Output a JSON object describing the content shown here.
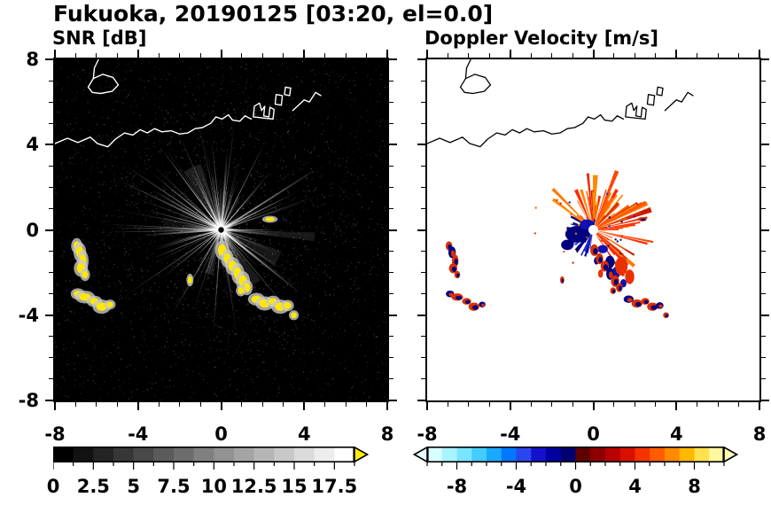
{
  "title": "Fukuoka, 20190125 [03:20, el=0.0]",
  "coastline": {
    "paths": [
      {
        "closed": false,
        "pts": [
          [
            -8,
            4.05
          ],
          [
            -7.4,
            4.3
          ],
          [
            -6.9,
            4.1
          ],
          [
            -6.3,
            4.35
          ],
          [
            -5.95,
            4.05
          ],
          [
            -5.45,
            3.9
          ],
          [
            -5.1,
            4.25
          ],
          [
            -4.65,
            4.55
          ],
          [
            -4.25,
            4.45
          ],
          [
            -3.9,
            4.7
          ],
          [
            -3.55,
            4.55
          ],
          [
            -3.2,
            4.75
          ],
          [
            -2.85,
            4.6
          ],
          [
            -2.4,
            4.65
          ],
          [
            -2.0,
            4.5
          ],
          [
            -1.6,
            4.55
          ],
          [
            -1.25,
            4.75
          ],
          [
            -0.9,
            4.8
          ],
          [
            -0.5,
            5.0
          ],
          [
            -0.25,
            5.3
          ],
          [
            0.05,
            5.2
          ],
          [
            0.35,
            5.4
          ],
          [
            0.55,
            5.15
          ],
          [
            0.9,
            5.1
          ],
          [
            1.15,
            5.35
          ],
          [
            1.45,
            5.2
          ]
        ]
      },
      {
        "closed": true,
        "pts": [
          [
            1.55,
            5.3
          ],
          [
            1.6,
            5.8
          ],
          [
            1.85,
            5.95
          ],
          [
            1.95,
            5.6
          ],
          [
            2.1,
            5.8
          ],
          [
            2.05,
            5.35
          ],
          [
            2.3,
            5.3
          ],
          [
            2.35,
            5.75
          ],
          [
            2.55,
            5.65
          ],
          [
            2.5,
            5.2
          ]
        ]
      },
      {
        "closed": true,
        "pts": [
          [
            2.6,
            5.9
          ],
          [
            2.65,
            6.35
          ],
          [
            2.95,
            6.3
          ],
          [
            2.9,
            5.85
          ]
        ]
      },
      {
        "closed": true,
        "pts": [
          [
            3.05,
            6.35
          ],
          [
            3.1,
            6.7
          ],
          [
            3.35,
            6.65
          ],
          [
            3.3,
            6.3
          ]
        ]
      },
      {
        "closed": false,
        "pts": [
          [
            3.45,
            5.6
          ],
          [
            4.0,
            6.1
          ],
          [
            4.25,
            6.0
          ],
          [
            4.55,
            6.45
          ],
          [
            4.8,
            6.3
          ]
        ]
      },
      {
        "closed": true,
        "pts": [
          [
            -6.4,
            6.7
          ],
          [
            -6.15,
            7.1
          ],
          [
            -5.7,
            7.3
          ],
          [
            -5.2,
            7.15
          ],
          [
            -4.95,
            6.8
          ],
          [
            -5.25,
            6.5
          ],
          [
            -5.8,
            6.4
          ],
          [
            -6.2,
            6.45
          ]
        ]
      },
      {
        "closed": false,
        "pts": [
          [
            -5.9,
            8.0
          ],
          [
            -6.1,
            7.6
          ],
          [
            -6.15,
            7.1
          ]
        ]
      }
    ]
  },
  "echoes": [
    [
      -6.95,
      -0.75,
      0.16,
      0.22
    ],
    [
      -6.8,
      -1.05,
      0.18,
      0.28
    ],
    [
      -6.65,
      -1.45,
      0.16,
      0.3
    ],
    [
      -6.75,
      -1.8,
      0.2,
      0.24
    ],
    [
      -6.55,
      -2.1,
      0.14,
      0.18
    ],
    [
      -6.9,
      -3.0,
      0.2,
      0.16
    ],
    [
      -6.55,
      -3.15,
      0.28,
      0.18
    ],
    [
      -6.1,
      -3.35,
      0.22,
      0.16
    ],
    [
      -5.75,
      -3.6,
      0.26,
      0.2
    ],
    [
      -5.35,
      -3.5,
      0.16,
      0.14
    ],
    [
      0.05,
      -0.95,
      0.2,
      0.28
    ],
    [
      0.3,
      -1.35,
      0.18,
      0.26
    ],
    [
      0.55,
      -1.7,
      0.2,
      0.26
    ],
    [
      0.8,
      -2.05,
      0.18,
      0.3
    ],
    [
      1.05,
      -2.4,
      0.2,
      0.28
    ],
    [
      1.25,
      -2.7,
      0.16,
      0.22
    ],
    [
      0.95,
      -2.85,
      0.14,
      0.16
    ],
    [
      1.7,
      -3.25,
      0.24,
      0.18
    ],
    [
      2.1,
      -3.45,
      0.26,
      0.2
    ],
    [
      2.5,
      -3.35,
      0.2,
      0.16
    ],
    [
      2.85,
      -3.6,
      0.26,
      0.2
    ],
    [
      3.2,
      -3.55,
      0.18,
      0.16
    ],
    [
      3.5,
      -4.0,
      0.14,
      0.14
    ],
    [
      -1.5,
      -2.35,
      0.1,
      0.18
    ],
    [
      2.35,
      0.5,
      0.22,
      0.1
    ]
  ],
  "chart_data": [
    {
      "type": "heatmap",
      "id": "snr",
      "subtitle": "SNR [dB]",
      "quantity": "radar signal-to-noise ratio PPI",
      "units": "dB",
      "axis": {
        "min": -8,
        "max": 8,
        "ticks": [
          -8,
          -4,
          0,
          4,
          8
        ],
        "tick_labels": [
          "-8",
          "-4",
          "0",
          "4",
          "8"
        ],
        "minor_step": 1,
        "y_labels": true
      },
      "background": "#000000",
      "render": {
        "style": "snr",
        "speckle_count": 2400,
        "ray_count": 150,
        "ray_max_radius": 5.8,
        "echo_color": "#ffe800",
        "echo_halo": "#c9c9c9",
        "coast_color": "#ffffff",
        "radar_site": [
          0,
          0
        ]
      },
      "colorbar": {
        "min": 0,
        "max": 18.75,
        "segment_step": 1.25,
        "tick_values": [
          0,
          2.5,
          5,
          7.5,
          10,
          12.5,
          15,
          17.5
        ],
        "tick_labels": [
          "0",
          "2.5",
          "5",
          "7.5",
          "10",
          "12.5",
          "15",
          "17.5"
        ],
        "colors": [
          "#000000",
          "#121212",
          "#242424",
          "#373737",
          "#494949",
          "#5b5b5b",
          "#6d6d6d",
          "#808080",
          "#929292",
          "#a4a4a4",
          "#b6b6b6",
          "#c8c8c8",
          "#dbdbdb",
          "#ededed",
          "#ffffff"
        ],
        "left_arrow": null,
        "right_arrow": "#ffee00"
      }
    },
    {
      "type": "heatmap",
      "id": "velocity",
      "subtitle": "Doppler Velocity [m/s]",
      "quantity": "radar Doppler velocity PPI",
      "units": "m/s",
      "axis": {
        "min": -8,
        "max": 8,
        "ticks": [
          -8,
          -4,
          0,
          4,
          8
        ],
        "tick_labels": [
          "-8",
          "-4",
          "0",
          "4",
          "8"
        ],
        "minor_step": 1,
        "y_labels": false
      },
      "background": "#ffffff",
      "render": {
        "style": "velocity",
        "coast_color": "#000000",
        "radar_site": [
          0,
          0
        ],
        "red_palette": [
          "#ff2a00",
          "#e63000",
          "#ff5500",
          "#ff7700",
          "#cc1a00",
          "#ff4400",
          "#ff8800"
        ],
        "blue_palette": [
          "#000080",
          "#0000aa",
          "#1a1acc",
          "#000060",
          "#2233cc"
        ],
        "red_fan": {
          "angle_deg": [
            -60,
            150
          ],
          "radius": [
            0.45,
            2.8
          ],
          "count": 95
        },
        "blue_fan": {
          "angle_deg": [
            145,
            265
          ],
          "radius": [
            0.25,
            1.4
          ],
          "count": 45
        },
        "blue_patches": [
          [
            -0.75,
            -0.2,
            0.6,
            0.4
          ],
          [
            -0.3,
            0.25,
            0.35,
            0.25
          ],
          [
            -1.25,
            -0.7,
            0.3,
            0.25
          ],
          [
            0.45,
            -0.9,
            0.25,
            0.2
          ],
          [
            0.8,
            -1.5,
            0.22,
            0.3
          ],
          [
            1.1,
            -2.0,
            0.2,
            0.28
          ],
          [
            0.15,
            -1.45,
            0.12,
            0.18
          ],
          [
            1.45,
            -2.5,
            0.15,
            0.2
          ]
        ],
        "red_patches": [
          [
            1.35,
            -1.7,
            0.3,
            0.45
          ],
          [
            1.75,
            -2.2,
            0.22,
            0.35
          ],
          [
            0.35,
            -2.05,
            0.12,
            0.2
          ]
        ]
      },
      "colorbar": {
        "min": -10,
        "max": 10,
        "segment_step": 1,
        "tick_values": [
          -8,
          -4,
          0,
          4,
          8
        ],
        "tick_labels": [
          "-8",
          "-4",
          "0",
          "4",
          "8"
        ],
        "colors": [
          "#d8ffff",
          "#aaf4ff",
          "#7ae4ff",
          "#44ccff",
          "#18aaff",
          "#0077ff",
          "#2a46ee",
          "#1212cc",
          "#0000a0",
          "#000070",
          "#600000",
          "#8e0000",
          "#b80000",
          "#d90f00",
          "#f53300",
          "#ff5c00",
          "#ff8a00",
          "#ffb800",
          "#ffe14d",
          "#fff6a0"
        ],
        "left_arrow": "#e8ffff",
        "right_arrow": "#ffffbb"
      }
    }
  ]
}
